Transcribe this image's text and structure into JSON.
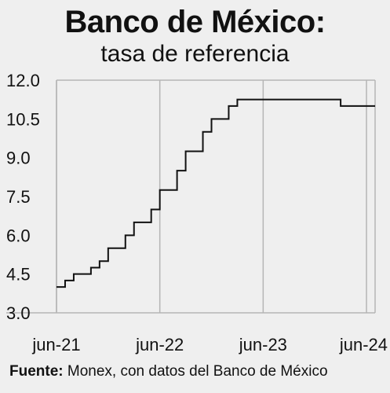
{
  "chart_data": {
    "type": "line",
    "step": true,
    "title": "Banco de México:",
    "subtitle": "tasa de referencia",
    "y_ticks": [
      "12.0",
      "10.5",
      "9.0",
      "7.5",
      "6.0",
      "4.5",
      "3.0"
    ],
    "ylim": [
      3.0,
      12.0
    ],
    "x_ticks": [
      "jun-21",
      "jun-22",
      "jun-23",
      "jun-24"
    ],
    "xlim": [
      "2021-06",
      "2024-07"
    ],
    "grid": "vertical",
    "series": [
      {
        "color": "#111111",
        "points": [
          {
            "x": "2021-06",
            "y": 4.0
          },
          {
            "x": "2021-07",
            "y": 4.25
          },
          {
            "x": "2021-08",
            "y": 4.5
          },
          {
            "x": "2021-10",
            "y": 4.75
          },
          {
            "x": "2021-11",
            "y": 5.0
          },
          {
            "x": "2021-12",
            "y": 5.5
          },
          {
            "x": "2022-02",
            "y": 6.0
          },
          {
            "x": "2022-03",
            "y": 6.5
          },
          {
            "x": "2022-05",
            "y": 7.0
          },
          {
            "x": "2022-06",
            "y": 7.75
          },
          {
            "x": "2022-08",
            "y": 8.5
          },
          {
            "x": "2022-09",
            "y": 9.25
          },
          {
            "x": "2022-11",
            "y": 10.0
          },
          {
            "x": "2022-12",
            "y": 10.5
          },
          {
            "x": "2023-02",
            "y": 11.0
          },
          {
            "x": "2023-03",
            "y": 11.25
          },
          {
            "x": "2024-03",
            "y": 11.0
          },
          {
            "x": "2024-07",
            "y": 11.0
          }
        ]
      }
    ]
  },
  "source": {
    "label": "Fuente:",
    "text": "Monex, con datos del Banco de México"
  }
}
